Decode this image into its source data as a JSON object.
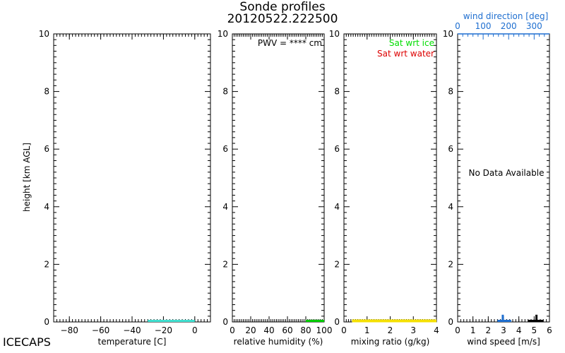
{
  "chart_data": {
    "type": "line",
    "title": "Sonde profiles",
    "subtitle": "20120522.222500",
    "footer_label": "ICECAPS",
    "ylabel": "height [km AGL]",
    "ylim": [
      0,
      10
    ],
    "y_ticks": [
      "0",
      "2",
      "4",
      "6",
      "8",
      "10"
    ],
    "panels": [
      {
        "id": "temperature",
        "xlabel": "temperature [C]",
        "xlim": [
          -90,
          10
        ],
        "x_ticks": [
          "−80",
          "−60",
          "−40",
          "−20",
          "0"
        ],
        "x_tick_values": [
          -80,
          -60,
          -40,
          -20,
          0
        ],
        "minor_step": 2,
        "series": [
          {
            "color": "#40e0d0",
            "x": [
              -30,
              0
            ],
            "y": [
              0,
              0
            ]
          }
        ]
      },
      {
        "id": "relative-humidity",
        "xlabel": "relative humidity (%)",
        "xlim": [
          0,
          100
        ],
        "x_ticks": [
          "0",
          "20",
          "40",
          "60",
          "80",
          "100"
        ],
        "x_tick_values": [
          0,
          20,
          40,
          60,
          80,
          100
        ],
        "minor_step": 2,
        "annotation": "PWV = **** cm",
        "series": [
          {
            "color": "#00cc00",
            "x": [
              80,
              100
            ],
            "y": [
              0,
              0
            ]
          }
        ]
      },
      {
        "id": "mixing-ratio",
        "xlabel": "mixing ratio (g/kg)",
        "xlim": [
          0,
          4
        ],
        "x_ticks": [
          "0",
          "1",
          "2",
          "3",
          "4"
        ],
        "x_tick_values": [
          0,
          1,
          2,
          3,
          4
        ],
        "minor_step": 0.1,
        "legend": [
          {
            "label": "Sat wrt ice",
            "color": "#00dd00"
          },
          {
            "label": "Sat wrt water",
            "color": "#dd0000"
          }
        ],
        "series": [
          {
            "name": "Sat wrt ice",
            "color": "#00dd00",
            "x": [
              0.35,
              0.75
            ],
            "y": [
              0,
              0
            ]
          },
          {
            "name": "Sat wrt water",
            "color": "#f5e000",
            "x": [
              0.35,
              4
            ],
            "y": [
              0,
              0
            ]
          }
        ]
      },
      {
        "id": "wind",
        "xlabel": "wind speed [m/s]",
        "xlim": [
          0,
          6
        ],
        "x_ticks": [
          "0",
          "1",
          "2",
          "3",
          "4",
          "5",
          "6"
        ],
        "x_tick_values": [
          0,
          1,
          2,
          3,
          4,
          5,
          6
        ],
        "minor_step": 0.2,
        "x2label": "wind direction [deg]",
        "x2lim": [
          0,
          360
        ],
        "x2_ticks": [
          "0",
          "100",
          "200",
          "300"
        ],
        "x2_tick_values": [
          0,
          100,
          200,
          300
        ],
        "x2_minor_step": 20,
        "x2_color": "#1f6fd0",
        "annotation": "No Data Available",
        "series": [
          {
            "name": "wind direction",
            "color": "#1f6fd0",
            "x": [
              2.6,
              3.5
            ],
            "y": [
              0,
              0
            ],
            "spike_x": 2.95,
            "spike_y": 0.25
          },
          {
            "name": "wind speed",
            "color": "#000000",
            "x": [
              4.6,
              5.6
            ],
            "y": [
              0,
              0
            ],
            "spike_x": 5.15,
            "spike_y": 0.25
          }
        ]
      }
    ]
  }
}
